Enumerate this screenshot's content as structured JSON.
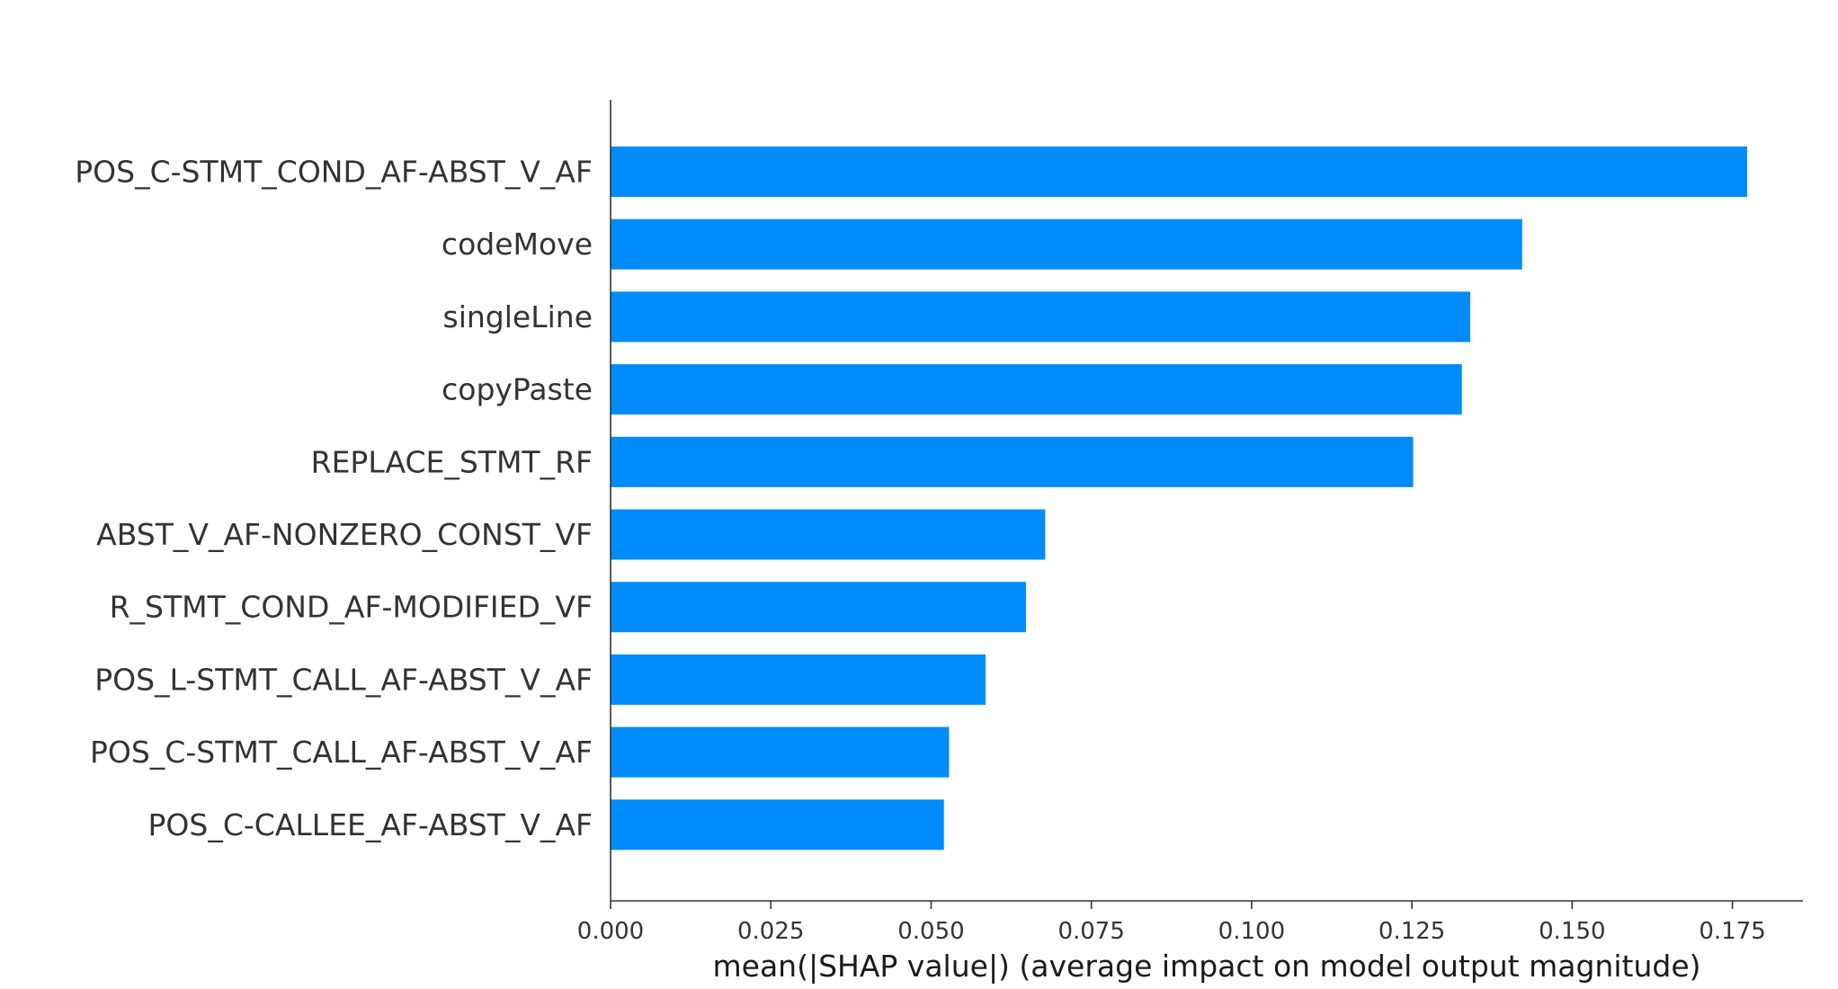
{
  "chart_data": {
    "type": "bar",
    "orientation": "horizontal",
    "categories": [
      "POS_C-STMT_COND_AF-ABST_V_AF",
      "codeMove",
      "singleLine",
      "copyPaste",
      "REPLACE_STMT_RF",
      "ABST_V_AF-NONZERO_CONST_VF",
      "R_STMT_COND_AF-MODIFIED_VF",
      "POS_L-STMT_CALL_AF-ABST_V_AF",
      "POS_C-STMT_CALL_AF-ABST_V_AF",
      "POS_C-CALLEE_AF-ABST_V_AF"
    ],
    "values": [
      0.1773,
      0.1422,
      0.1341,
      0.1328,
      0.1252,
      0.0678,
      0.0648,
      0.0585,
      0.0528,
      0.052
    ],
    "xlabel": "mean(|SHAP value|) (average impact on model output magnitude)",
    "ylabel": "",
    "xlim": [
      0,
      0.186
    ],
    "xticks": [
      "0.000",
      "0.025",
      "0.050",
      "0.075",
      "0.100",
      "0.125",
      "0.150",
      "0.175"
    ],
    "bar_color": "#008bfb",
    "grid": false
  }
}
